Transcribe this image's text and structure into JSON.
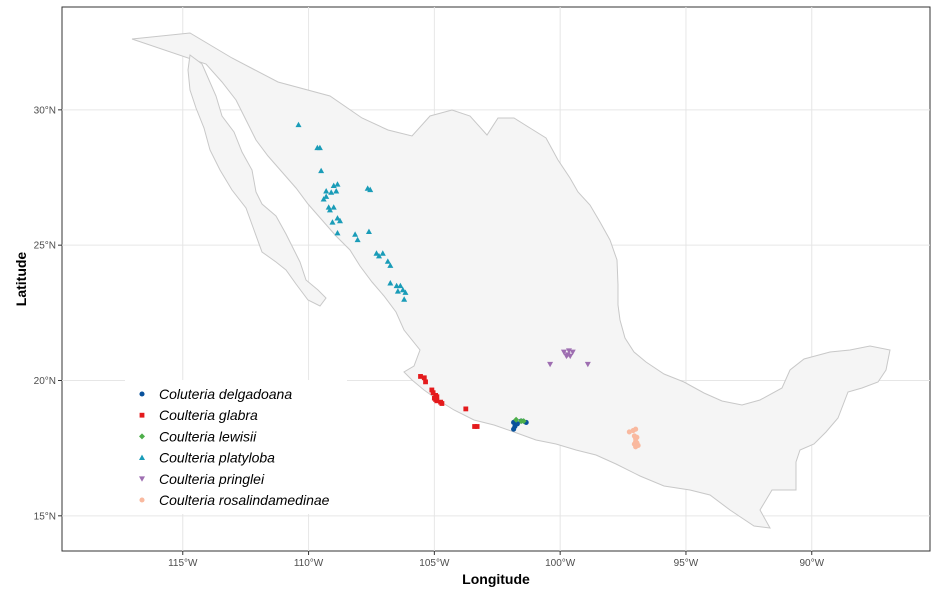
{
  "chart_data": {
    "type": "scatter",
    "title": "",
    "xlabel": "Longitude",
    "ylabel": "Latitude",
    "xlim": [
      -119.8,
      -85.3
    ],
    "ylim": [
      13.7,
      33.8
    ],
    "x_ticks": [
      {
        "value": -115,
        "label": "115°W"
      },
      {
        "value": -110,
        "label": "110°W"
      },
      {
        "value": -105,
        "label": "105°W"
      },
      {
        "value": -100,
        "label": "100°W"
      },
      {
        "value": -95,
        "label": "95°W"
      },
      {
        "value": -90,
        "label": "90°W"
      }
    ],
    "y_ticks": [
      {
        "value": 15,
        "label": "15°N"
      },
      {
        "value": 20,
        "label": "20°N"
      },
      {
        "value": 25,
        "label": "25°N"
      },
      {
        "value": 30,
        "label": "30°N"
      }
    ],
    "grid": true,
    "legend_position": "bottom-left inside",
    "basemap": "Mexico outline, light grey fill",
    "series": [
      {
        "name": "Coluteria delgadoana",
        "color": "#08519c",
        "shape": "circle",
        "points": [
          [
            -101.85,
            18.45
          ],
          [
            -101.8,
            18.3
          ],
          [
            -101.85,
            18.2
          ],
          [
            -101.55,
            18.5
          ],
          [
            -101.35,
            18.45
          ],
          [
            -101.7,
            18.4
          ]
        ]
      },
      {
        "name": "Coulteria glabra",
        "color": "#e41a1c",
        "shape": "square",
        "points": [
          [
            -105.55,
            20.15
          ],
          [
            -105.4,
            20.1
          ],
          [
            -105.35,
            19.95
          ],
          [
            -105.1,
            19.65
          ],
          [
            -105.05,
            19.55
          ],
          [
            -104.95,
            19.45
          ],
          [
            -104.9,
            19.4
          ],
          [
            -105.0,
            19.35
          ],
          [
            -104.95,
            19.3
          ],
          [
            -104.9,
            19.25
          ],
          [
            -104.75,
            19.2
          ],
          [
            -104.7,
            19.15
          ],
          [
            -103.75,
            18.95
          ],
          [
            -103.4,
            18.3
          ],
          [
            -103.3,
            18.3
          ]
        ]
      },
      {
        "name": "Coulteria lewisii",
        "color": "#4daf4a",
        "shape": "diamond",
        "points": [
          [
            -101.75,
            18.55
          ],
          [
            -101.55,
            18.5
          ],
          [
            -101.45,
            18.5
          ]
        ]
      },
      {
        "name": "Coulteria platyloba",
        "color": "#1a9cb8",
        "shape": "triangle",
        "points": [
          [
            -110.4,
            29.45
          ],
          [
            -109.65,
            28.6
          ],
          [
            -109.55,
            28.6
          ],
          [
            -109.5,
            27.75
          ],
          [
            -109.0,
            27.2
          ],
          [
            -108.85,
            27.25
          ],
          [
            -108.9,
            27.0
          ],
          [
            -109.1,
            26.95
          ],
          [
            -109.3,
            27.0
          ],
          [
            -109.3,
            26.8
          ],
          [
            -109.4,
            26.7
          ],
          [
            -109.2,
            26.4
          ],
          [
            -109.0,
            26.4
          ],
          [
            -109.15,
            26.3
          ],
          [
            -108.85,
            26.0
          ],
          [
            -108.75,
            25.9
          ],
          [
            -109.05,
            25.85
          ],
          [
            -108.85,
            25.45
          ],
          [
            -108.15,
            25.4
          ],
          [
            -108.05,
            25.2
          ],
          [
            -107.65,
            27.1
          ],
          [
            -107.55,
            27.05
          ],
          [
            -107.6,
            25.5
          ],
          [
            -107.3,
            24.7
          ],
          [
            -107.2,
            24.6
          ],
          [
            -107.05,
            24.7
          ],
          [
            -106.85,
            24.4
          ],
          [
            -106.75,
            24.25
          ],
          [
            -106.75,
            23.6
          ],
          [
            -106.5,
            23.5
          ],
          [
            -106.35,
            23.5
          ],
          [
            -106.45,
            23.3
          ],
          [
            -106.25,
            23.35
          ],
          [
            -106.15,
            23.25
          ],
          [
            -106.2,
            23.0
          ]
        ]
      },
      {
        "name": "Coulteria pringlei",
        "color": "#9e6eb1",
        "shape": "triangle-down",
        "points": [
          [
            -99.85,
            21.05
          ],
          [
            -99.65,
            21.1
          ],
          [
            -99.5,
            21.05
          ],
          [
            -99.7,
            20.95
          ],
          [
            -99.6,
            20.9
          ],
          [
            -99.75,
            20.9
          ],
          [
            -100.4,
            20.6
          ],
          [
            -98.9,
            20.6
          ]
        ]
      },
      {
        "name": "Coulteria rosalindamedinae",
        "color": "#f9b99f",
        "shape": "circle",
        "points": [
          [
            -97.25,
            18.1
          ],
          [
            -97.1,
            18.15
          ],
          [
            -97.0,
            18.2
          ],
          [
            -97.05,
            17.95
          ],
          [
            -97.0,
            17.85
          ],
          [
            -96.95,
            17.9
          ],
          [
            -97.0,
            17.75
          ],
          [
            -96.95,
            17.7
          ],
          [
            -97.05,
            17.65
          ],
          [
            -96.9,
            17.6
          ],
          [
            -97.0,
            17.55
          ]
        ]
      }
    ]
  }
}
